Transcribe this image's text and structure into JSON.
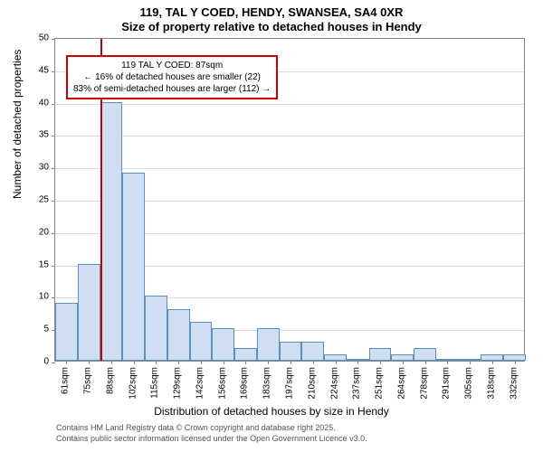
{
  "titles": {
    "line1": "119, TAL Y COED, HENDY, SWANSEA, SA4 0XR",
    "line2": "Size of property relative to detached houses in Hendy"
  },
  "chart": {
    "type": "histogram",
    "ylim": [
      0,
      50
    ],
    "ytick_step": 5,
    "ylabel": "Number of detached properties",
    "xlabel": "Distribution of detached houses by size in Hendy",
    "bar_color": "#cfdff1",
    "bar_border_color": "#5a8fc0",
    "grid_color": "#dddddd",
    "border_color": "#888888",
    "marker_color": "#cc0000",
    "marker_x_index": 2,
    "x_labels": [
      "61sqm",
      "75sqm",
      "88sqm",
      "102sqm",
      "115sqm",
      "129sqm",
      "142sqm",
      "156sqm",
      "169sqm",
      "183sqm",
      "197sqm",
      "210sqm",
      "224sqm",
      "237sqm",
      "251sqm",
      "264sqm",
      "278sqm",
      "291sqm",
      "305sqm",
      "318sqm",
      "332sqm"
    ],
    "values": [
      9,
      15,
      40,
      29,
      10,
      8,
      6,
      5,
      2,
      5,
      3,
      3,
      1,
      0,
      2,
      1,
      2,
      0,
      0,
      1,
      1
    ],
    "bar_count": 21,
    "annotation": {
      "line1": "119 TAL Y COED: 87sqm",
      "line2": "← 16% of detached houses are smaller (22)",
      "line3": "83% of semi-detached houses are larger (112) →",
      "border_color": "#cc0000"
    }
  },
  "footer": {
    "line1": "Contains HM Land Registry data © Crown copyright and database right 2025.",
    "line2": "Contains public sector information licensed under the Open Government Licence v3.0."
  }
}
